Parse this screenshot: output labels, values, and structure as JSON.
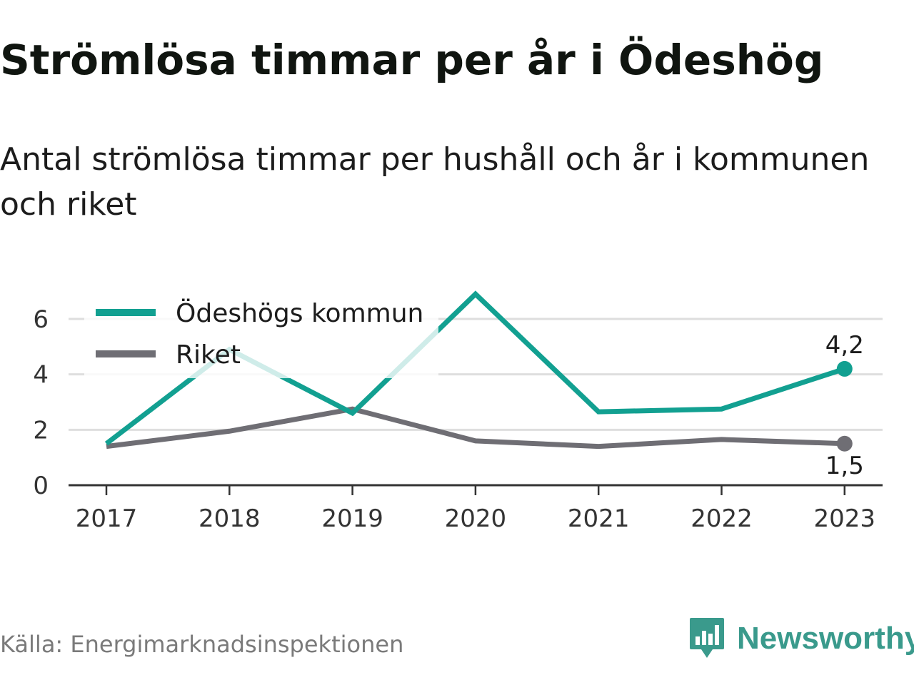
{
  "header": {
    "title": "Strömlösa timmar per år i Ödeshög",
    "subtitle": "Antal strömlösa timmar per hushåll och år i kommunen och riket"
  },
  "footer": {
    "source": "Källa: Energimarknadsinspektionen",
    "brand": "Newsworthy",
    "brand_color": "#3a9a8c",
    "brand_icon": "bar-chart-speech-bubble-icon"
  },
  "chart_data": {
    "type": "line",
    "title": "Strömlösa timmar per år i Ödeshög",
    "subtitle": "Antal strömlösa timmar per hushåll och år i kommunen och riket",
    "xlabel": "",
    "ylabel": "",
    "x": [
      2017,
      2018,
      2019,
      2020,
      2021,
      2022,
      2023
    ],
    "x_tick_labels": [
      "2017",
      "2018",
      "2019",
      "2020",
      "2021",
      "2022",
      "2023"
    ],
    "y_ticks": [
      0,
      2,
      4,
      6
    ],
    "y_tick_labels": [
      "0",
      "2",
      "4",
      "6"
    ],
    "ylim": [
      0,
      7
    ],
    "grid": true,
    "legend": "top-left",
    "series": [
      {
        "name": "Ödeshögs kommun",
        "color": "#12a091",
        "values": [
          1.5,
          4.9,
          2.6,
          6.9,
          2.65,
          2.75,
          4.2
        ],
        "end_label": "4,2"
      },
      {
        "name": "Riket",
        "color": "#6f6e74",
        "values": [
          1.4,
          1.95,
          2.75,
          1.6,
          1.4,
          1.65,
          1.5
        ],
        "end_label": "1,5"
      }
    ]
  }
}
